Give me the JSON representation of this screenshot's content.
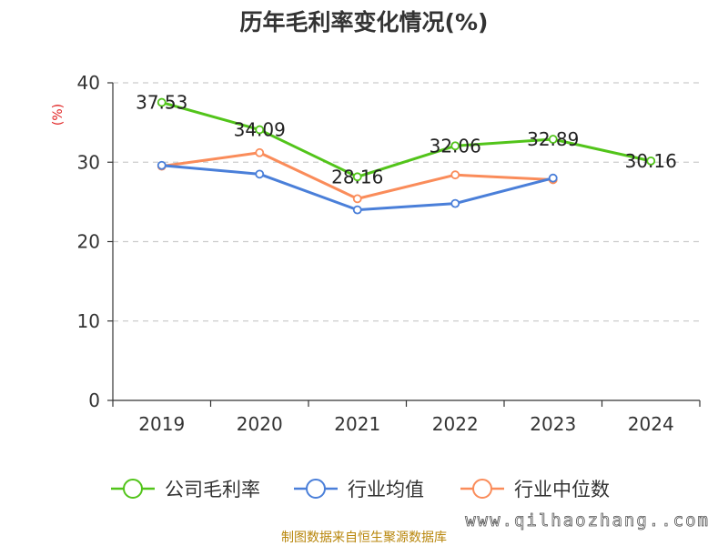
{
  "chart_data": {
    "type": "line",
    "title": "历年毛利率变化情况(%)",
    "ylabel": "(%)",
    "categories": [
      "2019",
      "2020",
      "2021",
      "2022",
      "2023",
      "2024"
    ],
    "ylim": [
      0,
      40
    ],
    "yticks": [
      0,
      10,
      20,
      30,
      40
    ],
    "grid": true,
    "legend_position": "bottom",
    "series": [
      {
        "name": "公司毛利率",
        "color": "#52c41a",
        "values": [
          37.53,
          34.09,
          28.16,
          32.06,
          32.89,
          30.16
        ],
        "labels": [
          "37.53",
          "34.09",
          "28.16",
          "32.06",
          "32.89",
          "30.16"
        ]
      },
      {
        "name": "行业均值",
        "color": "#4a7fd9",
        "values": [
          29.6,
          28.5,
          24.0,
          24.8,
          28.0,
          null
        ]
      },
      {
        "name": "行业中位数",
        "color": "#fa8c5a",
        "values": [
          29.5,
          31.2,
          25.4,
          28.4,
          27.8,
          null
        ]
      }
    ]
  },
  "source_note": "制图数据来自恒生聚源数据库",
  "watermark": "www.qilhaozhang..com"
}
